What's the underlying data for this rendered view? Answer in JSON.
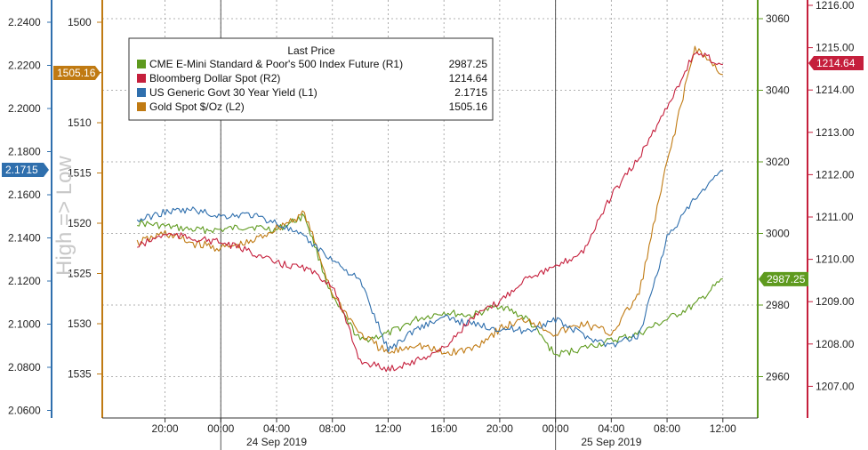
{
  "chart_data": {
    "type": "line",
    "legend": {
      "title": "Last Price",
      "placement": "top-left",
      "entries": [
        {
          "key": "spx",
          "label": "CME E-Mini Standard & Poor's 500 Index Future  (R1)",
          "value": "2987.25",
          "color": "#5e9a1e"
        },
        {
          "key": "dxy",
          "label": "Bloomberg Dollar Spot  (R2)",
          "value": "1214.64",
          "color": "#c51f3c"
        },
        {
          "key": "ust30",
          "label": "US Generic Govt 30 Year Yield  (L1)",
          "value": "2.1715",
          "color": "#2f6fad"
        },
        {
          "key": "gold",
          "label": "Gold Spot $/Oz  (L2)",
          "value": "1505.16",
          "color": "#c07a12"
        }
      ]
    },
    "watermark": "High => Low",
    "axes": {
      "L1": {
        "ticks": [
          "2.2400",
          "2.2200",
          "2.2000",
          "2.1800",
          "2.1600",
          "2.1400",
          "2.1200",
          "2.1000",
          "2.0800",
          "2.0600"
        ],
        "range": [
          2.06,
          2.24
        ],
        "color": "#2f6fad",
        "last_tag": "2.1715"
      },
      "L2": {
        "ticks": [
          "1500",
          "1505",
          "1510",
          "1515",
          "1520",
          "1525",
          "1530",
          "1535"
        ],
        "range": [
          1500,
          1535
        ],
        "inverted": true,
        "color": "#c07a12",
        "last_tag": "1505.16"
      },
      "R1": {
        "ticks": [
          "3060",
          "3040",
          "3020",
          "3000",
          "2980",
          "2960"
        ],
        "range": [
          2960,
          3060
        ],
        "color": "#5e9a1e",
        "last_tag": "2987.25"
      },
      "R2": {
        "ticks": [
          "1216.00",
          "1215.00",
          "1214.00",
          "1213.00",
          "1212.00",
          "1211.00",
          "1210.00",
          "1209.00",
          "1208.00",
          "1207.00"
        ],
        "range": [
          1207,
          1216
        ],
        "color": "#c51f3c",
        "last_tag": "1214.64"
      }
    },
    "x": {
      "hours": [
        -6,
        -4,
        -2,
        0,
        2,
        4,
        6,
        8,
        10,
        12,
        14,
        16,
        18,
        20,
        22,
        24,
        26,
        28,
        30,
        32,
        34,
        36
      ],
      "tick_labels": [
        "20:00",
        "00:00",
        "04:00",
        "08:00",
        "12:00",
        "16:00",
        "20:00",
        "00:00",
        "04:00",
        "08:00",
        "12:00"
      ],
      "date_labels": [
        "24 Sep 2019",
        "25 Sep 2019"
      ],
      "grid": true
    },
    "series": [
      {
        "key": "ust30",
        "axis": "L1",
        "color": "#2f6fad",
        "values": [
          2.148,
          2.152,
          2.153,
          2.15,
          2.151,
          2.147,
          2.14,
          2.13,
          2.12,
          2.088,
          2.098,
          2.103,
          2.1,
          2.098,
          2.097,
          2.102,
          2.095,
          2.09,
          2.095,
          2.14,
          2.158,
          2.171
        ]
      },
      {
        "key": "gold",
        "axis": "L2",
        "color": "#c07a12",
        "values": [
          1522.0,
          1521.0,
          1522.0,
          1522.5,
          1522.0,
          1520.5,
          1519.0,
          1527.0,
          1531.0,
          1533.0,
          1532.0,
          1533.0,
          1532.5,
          1530.5,
          1529.5,
          1531.0,
          1530.0,
          1531.0,
          1527.0,
          1514.0,
          1502.5,
          1505.2
        ]
      },
      {
        "key": "spx",
        "axis": "R1",
        "color": "#5e9a1e",
        "values": [
          3003.0,
          3002.0,
          3001.0,
          3001.0,
          3002.0,
          3001.0,
          3005.0,
          2982.0,
          2970.0,
          2972.0,
          2976.0,
          2978.0,
          2977.0,
          2980.0,
          2976.0,
          2966.0,
          2968.0,
          2970.0,
          2972.0,
          2976.0,
          2980.0,
          2987.3
        ]
      },
      {
        "key": "dxy",
        "axis": "R2",
        "color": "#c51f3c",
        "values": [
          1210.3,
          1210.6,
          1210.5,
          1210.4,
          1210.2,
          1209.9,
          1209.8,
          1209.4,
          1207.6,
          1207.4,
          1207.6,
          1207.9,
          1208.6,
          1209.0,
          1209.6,
          1209.8,
          1210.2,
          1211.5,
          1212.4,
          1213.6,
          1214.9,
          1214.6
        ]
      }
    ]
  }
}
